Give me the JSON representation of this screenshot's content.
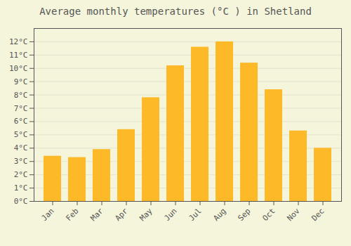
{
  "chart_data": {
    "type": "bar",
    "title": "Average monthly temperatures (°C ) in Shetland",
    "categories": [
      "Jan",
      "Feb",
      "Mar",
      "Apr",
      "May",
      "Jun",
      "Jul",
      "Aug",
      "Sep",
      "Oct",
      "Nov",
      "Dec"
    ],
    "values": [
      3.4,
      3.3,
      3.9,
      5.4,
      7.8,
      10.2,
      11.6,
      12.0,
      10.4,
      8.4,
      5.3,
      4.0
    ],
    "color": "#FDB927",
    "ylim": [
      0,
      13
    ],
    "yticks": [
      {
        "value": 0,
        "label": "0°C"
      },
      {
        "value": 1,
        "label": "1°C"
      },
      {
        "value": 2,
        "label": "2°C"
      },
      {
        "value": 3,
        "label": "3°C"
      },
      {
        "value": 4,
        "label": "4°C"
      },
      {
        "value": 5,
        "label": "5°C"
      },
      {
        "value": 6,
        "label": "6°C"
      },
      {
        "value": 7,
        "label": "7°C"
      },
      {
        "value": 8,
        "label": "8°C"
      },
      {
        "value": 9,
        "label": "9°C"
      },
      {
        "value": 10,
        "label": "10°C"
      },
      {
        "value": 11,
        "label": "11°C"
      },
      {
        "value": 12,
        "label": "12°C"
      }
    ],
    "grid": true
  }
}
